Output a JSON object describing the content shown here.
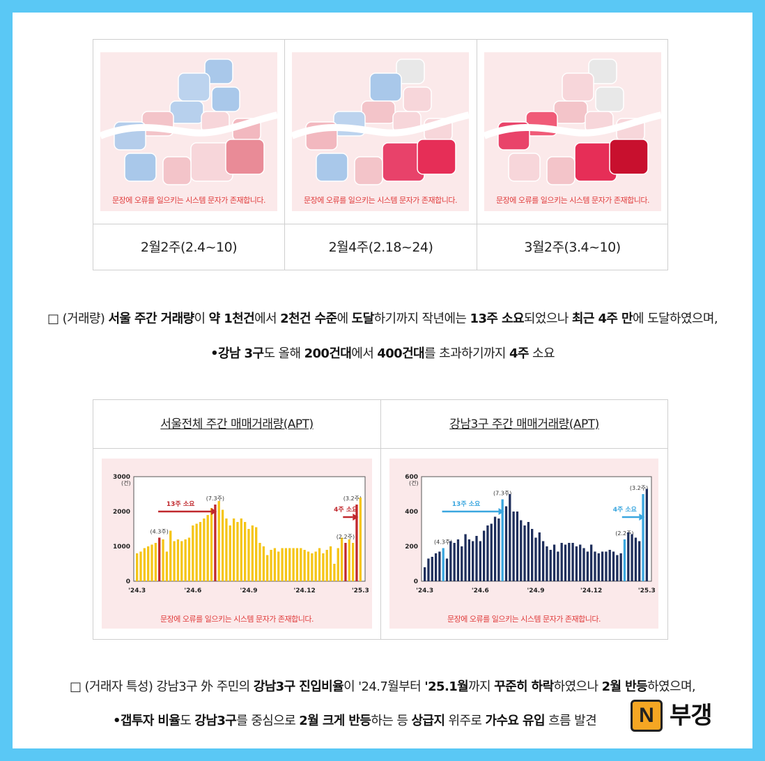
{
  "maps": {
    "error_text": "문장에 오류를 일으키는 시스템 문자가 존재합니다.",
    "captions": [
      "2월2주(2.4~10)",
      "2월4주(2.18~24)",
      "3월2주(3.4~10)"
    ]
  },
  "para1": {
    "box": "□",
    "line1": [
      {
        "t": "(거래량) ",
        "b": false
      },
      {
        "t": "서울 주간 거래량",
        "b": true
      },
      {
        "t": "이 ",
        "b": false
      },
      {
        "t": "약 1천건",
        "b": true
      },
      {
        "t": "에서 ",
        "b": false
      },
      {
        "t": "2천건 수준",
        "b": true
      },
      {
        "t": "에 ",
        "b": false
      },
      {
        "t": "도달",
        "b": true
      },
      {
        "t": "하기까지 작년에는 ",
        "b": false
      },
      {
        "t": "13주 소요",
        "b": true
      },
      {
        "t": "되었으나 ",
        "b": false
      },
      {
        "t": "최근 4주 만",
        "b": true
      },
      {
        "t": "에 도달하였으며,",
        "b": false
      }
    ],
    "line2": [
      {
        "t": "•강남 3구",
        "b": true
      },
      {
        "t": "도 올해 ",
        "b": false
      },
      {
        "t": "200건대",
        "b": true
      },
      {
        "t": "에서 ",
        "b": false
      },
      {
        "t": "400건대",
        "b": true
      },
      {
        "t": "를 초과하기까지 ",
        "b": false
      },
      {
        "t": "4주",
        "b": true
      },
      {
        "t": " 소요",
        "b": false
      }
    ]
  },
  "charts": {
    "error_text": "문장에 오류를 일으키는 시스템 문자가 존재합니다.",
    "left_title": "서울전체 주간 매매거래량(APT)",
    "right_title": "강남3구 주간 매매거래량(APT)"
  },
  "chart_data": [
    {
      "type": "bar",
      "title": "서울전체 주간 매매거래량(APT)",
      "unit": "(건)",
      "ylim": [
        0,
        3000
      ],
      "yticks": [
        0,
        1000,
        2000,
        3000
      ],
      "xticks": [
        "'24.3",
        "'24.6",
        "'24.9",
        "'24.12",
        "'25.3"
      ],
      "bar_color": "#f5c518",
      "highlight_color": "#c0282d",
      "values": [
        800,
        850,
        950,
        1000,
        1050,
        1100,
        1250,
        1200,
        850,
        1450,
        1150,
        1200,
        1150,
        1200,
        1250,
        1600,
        1650,
        1700,
        1800,
        1900,
        2100,
        2200,
        2300,
        2050,
        1800,
        1600,
        1800,
        1700,
        1800,
        1700,
        1500,
        1600,
        1550,
        1100,
        1000,
        750,
        900,
        950,
        850,
        950,
        950,
        950,
        950,
        950,
        950,
        900,
        850,
        800,
        850,
        950,
        800,
        900,
        1000,
        500,
        950,
        1250,
        1100,
        1200,
        1100,
        2200,
        2400
      ],
      "highlights": [
        {
          "index": 6,
          "label": "(4.3주)"
        },
        {
          "index": 21,
          "label": "(7.3주)"
        },
        {
          "index": 56,
          "label": "(2.2주)"
        },
        {
          "index": 59,
          "label": "(3.2주)"
        }
      ],
      "annotations": [
        {
          "text": "13주 소요"
        },
        {
          "text": "4주 소요"
        }
      ]
    },
    {
      "type": "bar",
      "title": "강남3구 주간 매매거래량(APT)",
      "unit": "(건)",
      "ylim": [
        0,
        600
      ],
      "yticks": [
        0,
        200,
        400,
        600
      ],
      "xticks": [
        "'24.3",
        "'24.6",
        "'24.9",
        "'24.12",
        "'25.3"
      ],
      "bar_color": "#1f2f5c",
      "highlight_color": "#3aa6df",
      "values": [
        80,
        130,
        140,
        160,
        170,
        190,
        130,
        230,
        220,
        240,
        200,
        270,
        240,
        230,
        260,
        230,
        290,
        320,
        330,
        370,
        360,
        470,
        430,
        500,
        400,
        400,
        350,
        320,
        340,
        300,
        250,
        280,
        230,
        200,
        180,
        210,
        170,
        220,
        210,
        220,
        220,
        200,
        210,
        190,
        170,
        210,
        170,
        160,
        170,
        170,
        180,
        170,
        150,
        160,
        240,
        280,
        270,
        250,
        230,
        500,
        530
      ],
      "highlights": [
        {
          "index": 5,
          "label": "(4.3주)"
        },
        {
          "index": 21,
          "label": "(7.3주)"
        },
        {
          "index": 54,
          "label": "(2.2주)"
        },
        {
          "index": 59,
          "label": "(3.2주)"
        }
      ],
      "annotations": [
        {
          "text": "13주 소요"
        },
        {
          "text": "4주 소요"
        }
      ]
    }
  ],
  "para2": {
    "box": "□",
    "line1": [
      {
        "t": "(거래자 특성) 강남3구 外 주민의 ",
        "b": false
      },
      {
        "t": "강남3구 진입비율",
        "b": true
      },
      {
        "t": "이 '24.7월부터 ",
        "b": false
      },
      {
        "t": "'25.1월",
        "b": true
      },
      {
        "t": "까지 ",
        "b": false
      },
      {
        "t": "꾸준히 하락",
        "b": true
      },
      {
        "t": "하였으나 ",
        "b": false
      },
      {
        "t": "2월 반등",
        "b": true
      },
      {
        "t": "하였으며,",
        "b": false
      }
    ],
    "line2": [
      {
        "t": "•갭투자 비율",
        "b": true
      },
      {
        "t": "도 ",
        "b": false
      },
      {
        "t": "강남3구",
        "b": true
      },
      {
        "t": "를 중심으로 ",
        "b": false
      },
      {
        "t": "2월 크게 반등",
        "b": true
      },
      {
        "t": "하는 등 ",
        "b": false
      },
      {
        "t": "상급지",
        "b": true
      },
      {
        "t": " 위주로 ",
        "b": false
      },
      {
        "t": "가수요 유입",
        "b": true
      },
      {
        "t": " 흐름 발견",
        "b": false
      }
    ]
  },
  "logo": {
    "mark": "N",
    "text": "부갱"
  }
}
